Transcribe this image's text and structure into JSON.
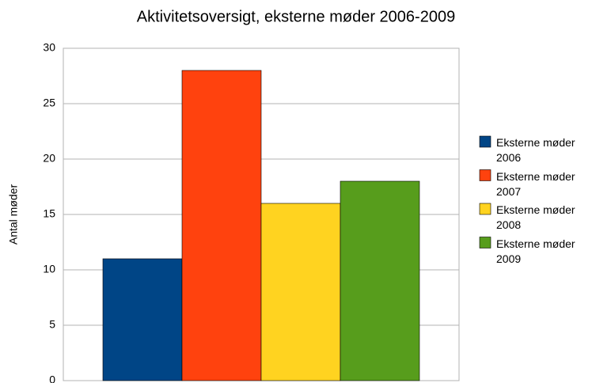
{
  "chart_data": {
    "type": "bar",
    "title": "Aktivitetsoversigt, eksterne møder 2006-2009",
    "y_label": "Antal møder",
    "categories": [
      null
    ],
    "series": [
      {
        "name": "Eksterne møder 2006",
        "color": "#004586",
        "values": [
          11
        ]
      },
      {
        "name": "Eksterne møder 2007",
        "color": "#ff420e",
        "values": [
          28
        ]
      },
      {
        "name": "Eksterne møder 2008",
        "color": "#ffd320",
        "values": [
          16
        ]
      },
      {
        "name": "Eksterne møder 2009",
        "color": "#579d1c",
        "values": [
          18
        ]
      }
    ],
    "ylim": [
      0,
      30
    ],
    "yticks": [
      0,
      5,
      10,
      15,
      20,
      25,
      30
    ],
    "grid": true,
    "legend": "right"
  }
}
